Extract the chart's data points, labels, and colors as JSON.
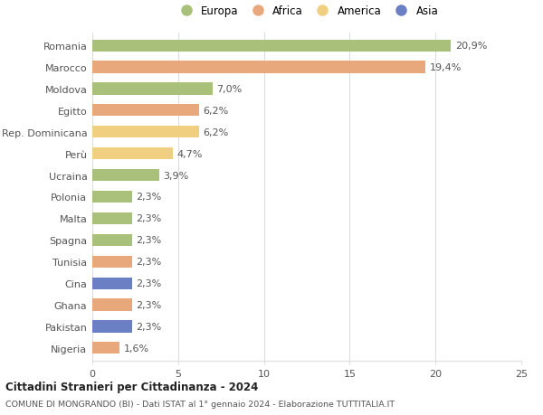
{
  "categories": [
    "Nigeria",
    "Pakistan",
    "Ghana",
    "Cina",
    "Tunisia",
    "Spagna",
    "Malta",
    "Polonia",
    "Ucraina",
    "Perù",
    "Rep. Dominicana",
    "Egitto",
    "Moldova",
    "Marocco",
    "Romania"
  ],
  "values": [
    1.6,
    2.3,
    2.3,
    2.3,
    2.3,
    2.3,
    2.3,
    2.3,
    3.9,
    4.7,
    6.2,
    6.2,
    7.0,
    19.4,
    20.9
  ],
  "labels": [
    "1,6%",
    "2,3%",
    "2,3%",
    "2,3%",
    "2,3%",
    "2,3%",
    "2,3%",
    "2,3%",
    "3,9%",
    "4,7%",
    "6,2%",
    "6,2%",
    "7,0%",
    "19,4%",
    "20,9%"
  ],
  "colors": [
    "#e8a87c",
    "#6b7fc4",
    "#e8a87c",
    "#6b7fc4",
    "#e8a87c",
    "#a8c07a",
    "#a8c07a",
    "#a8c07a",
    "#a8c07a",
    "#f0d080",
    "#f0d080",
    "#e8a87c",
    "#a8c07a",
    "#e8a87c",
    "#a8c07a"
  ],
  "legend": [
    {
      "label": "Europa",
      "color": "#a8c07a"
    },
    {
      "label": "Africa",
      "color": "#e8a87c"
    },
    {
      "label": "America",
      "color": "#f0d080"
    },
    {
      "label": "Asia",
      "color": "#6b7fc4"
    }
  ],
  "xlim": [
    0,
    25
  ],
  "xticks": [
    0,
    5,
    10,
    15,
    20,
    25
  ],
  "title1": "Cittadini Stranieri per Cittadinanza - 2024",
  "title2": "COMUNE DI MONGRANDO (BI) - Dati ISTAT al 1° gennaio 2024 - Elaborazione TUTTITALIA.IT",
  "bg_color": "#ffffff",
  "bar_height": 0.55,
  "grid_color": "#dddddd",
  "text_color": "#555555",
  "label_fontsize": 8,
  "ytick_fontsize": 8,
  "xtick_fontsize": 8
}
